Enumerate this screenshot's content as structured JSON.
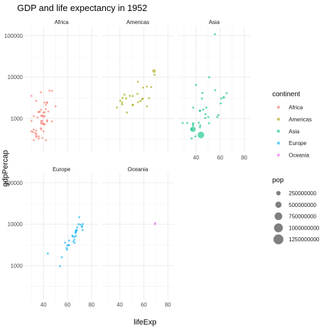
{
  "chart_data": {
    "type": "scatter",
    "title": "GDP and life expectancy in 1952",
    "xlabel": "lifeExp",
    "ylabel": "gdpPercap",
    "x_ticks": [
      "40",
      "60",
      "80"
    ],
    "y_ticks": [
      "1000",
      "10000",
      "100000"
    ],
    "y_scale": "log10",
    "xlim": [
      25,
      85
    ],
    "ylim": [
      150,
      170000
    ],
    "grid": true,
    "facets": [
      "Africa",
      "Americas",
      "Asia",
      "Europe",
      "Oceania"
    ],
    "colors": {
      "Africa": "#F8766D",
      "Americas": "#A3A500",
      "Asia": "#00BF7D",
      "Europe": "#00B0F6",
      "Oceania": "#E76BF3"
    },
    "color_legend": {
      "title": "continent",
      "items": [
        "Africa",
        "Americas",
        "Asia",
        "Europe",
        "Oceania"
      ],
      "position": "right"
    },
    "size_legend": {
      "title": "pop",
      "items": [
        "250000000",
        "500000000",
        "750000000",
        "1000000000",
        "1250000000"
      ],
      "values": [
        250000000,
        500000000,
        750000000,
        1000000000,
        1250000000
      ],
      "position": "right"
    },
    "series": [
      {
        "name": "Africa",
        "points": [
          [
            43,
            2450,
            9000000
          ],
          [
            30,
            3520,
            4200000
          ],
          [
            38,
            550,
            1700000
          ],
          [
            47,
            850,
            440000
          ],
          [
            32,
            540,
            4400000
          ],
          [
            39,
            340,
            2400000
          ],
          [
            38,
            1170,
            5000000
          ],
          [
            35,
            1070,
            1300000
          ],
          [
            39,
            1180,
            2700000
          ],
          [
            40,
            1100,
            150000
          ],
          [
            39,
            780,
            14000000
          ],
          [
            42,
            2130,
            850000
          ],
          [
            40,
            1390,
            2900000
          ],
          [
            34,
            2670,
            63000
          ],
          [
            41,
            1420,
            22000000
          ],
          [
            34,
            380,
            216000
          ],
          [
            36,
            330,
            1400000
          ],
          [
            34,
            360,
            20000000
          ],
          [
            38,
            4290,
            420000
          ],
          [
            30,
            490,
            280000
          ],
          [
            43,
            910,
            5600000
          ],
          [
            34,
            510,
            2700000
          ],
          [
            32,
            300,
            580000
          ],
          [
            43,
            850,
            6500000
          ],
          [
            42,
            300,
            750000
          ],
          [
            38,
            580,
            860000
          ],
          [
            43,
            2390,
            1000000
          ],
          [
            36,
            1440,
            4800000
          ],
          [
            36,
            370,
            2900000
          ],
          [
            34,
            420,
            3800000
          ],
          [
            33,
            450,
            4700000
          ],
          [
            40,
            740,
            1000000
          ],
          [
            50,
            1970,
            520000
          ],
          [
            42,
            1690,
            9900000
          ],
          [
            31,
            470,
            6400000
          ],
          [
            41,
            2420,
            490000
          ],
          [
            38,
            760,
            3400000
          ],
          [
            36,
            1440,
            33000000
          ],
          [
            47,
            4630,
            3900000
          ],
          [
            40,
            490,
            2500000
          ],
          [
            39,
            880,
            60000
          ],
          [
            37,
            1450,
            2700000
          ],
          [
            30,
            880,
            2100000
          ],
          [
            32,
            1140,
            2500000
          ],
          [
            45,
            4730,
            14000000
          ],
          [
            38,
            1620,
            8500000
          ],
          [
            41,
            1150,
            290000
          ],
          [
            41,
            720,
            8300000
          ],
          [
            38,
            860,
            1200000
          ],
          [
            44,
            1470,
            3600000
          ],
          [
            40,
            730,
            5800000
          ],
          [
            39,
            1150,
            2700000
          ]
        ]
      },
      {
        "name": "Americas",
        "points": [
          [
            62.5,
            5910,
            17900000
          ],
          [
            40.4,
            2680,
            2900000
          ],
          [
            50.9,
            2110,
            56600000
          ],
          [
            68.8,
            11370,
            14800000
          ],
          [
            54.7,
            3940,
            6400000
          ],
          [
            50.6,
            2140,
            12400000
          ],
          [
            57.2,
            2630,
            930000
          ],
          [
            59.4,
            5590,
            6000000
          ],
          [
            45.9,
            1400,
            2500000
          ],
          [
            48.4,
            3520,
            3500000
          ],
          [
            45.3,
            3050,
            2000000
          ],
          [
            42.0,
            2430,
            3100000
          ],
          [
            37.6,
            1840,
            3200000
          ],
          [
            41.9,
            2190,
            1500000
          ],
          [
            58.5,
            2900,
            1400000
          ],
          [
            50.8,
            3480,
            30100000
          ],
          [
            42.3,
            3110,
            1200000
          ],
          [
            55.2,
            2480,
            940000
          ],
          [
            62.6,
            1950,
            1600000
          ],
          [
            43.9,
            3760,
            8000000
          ],
          [
            64.3,
            3080,
            2200000
          ],
          [
            59.1,
            3030,
            660000
          ],
          [
            68.4,
            13990,
            157600000
          ],
          [
            66.1,
            5720,
            2400000
          ],
          [
            55.1,
            7690,
            5400000
          ]
        ]
      },
      {
        "name": "Asia",
        "points": [
          [
            28.8,
            780,
            8400000
          ],
          [
            50.9,
            9870,
            120000
          ],
          [
            37.5,
            680,
            46900000
          ],
          [
            39.4,
            370,
            4700000
          ],
          [
            44.0,
            400,
            556300000
          ],
          [
            60.96,
            3050,
            2100000
          ],
          [
            37.4,
            550,
            372000000
          ],
          [
            37.5,
            750,
            82100000
          ],
          [
            44.9,
            3040,
            17300000
          ],
          [
            45.3,
            4130,
            5400000
          ],
          [
            65.4,
            4090,
            1600000
          ],
          [
            63.0,
            3220,
            86500000
          ],
          [
            43.2,
            1550,
            610000
          ],
          [
            50.1,
            1090,
            8900000
          ],
          [
            47.5,
            1030,
            20900000
          ],
          [
            55.6,
            108400,
            160000
          ],
          [
            55.9,
            4830,
            1400000
          ],
          [
            48.5,
            1830,
            6700000
          ],
          [
            42.2,
            790,
            800000
          ],
          [
            36.3,
            330,
            20100000
          ],
          [
            36.2,
            550,
            9200000
          ],
          [
            37.6,
            1830,
            510000
          ],
          [
            43.4,
            680,
            41300000
          ],
          [
            47.8,
            1270,
            22400000
          ],
          [
            39.9,
            6460,
            4000000
          ],
          [
            60.4,
            2320,
            1100000
          ],
          [
            57.6,
            1080,
            7980000
          ],
          [
            45.9,
            1640,
            3700000
          ],
          [
            58.5,
            1210,
            8600000
          ],
          [
            50.8,
            770,
            21300000
          ],
          [
            43.2,
            610,
            26200000
          ],
          [
            43.2,
            1520,
            1000000
          ],
          [
            32.5,
            780,
            4960000
          ]
        ]
      },
      {
        "name": "Europe",
        "points": [
          [
            55.2,
            1600,
            1300000
          ],
          [
            66.8,
            6140,
            6900000
          ],
          [
            68.0,
            8340,
            8700000
          ],
          [
            53.8,
            970,
            2800000
          ],
          [
            59.6,
            2440,
            7300000
          ],
          [
            61.2,
            3120,
            3900000
          ],
          [
            66.9,
            6880,
            9100000
          ],
          [
            70.8,
            9690,
            4300000
          ],
          [
            66.6,
            6420,
            4100000
          ],
          [
            67.4,
            7030,
            42500000
          ],
          [
            67.5,
            7140,
            69100000
          ],
          [
            65.9,
            3530,
            7700000
          ],
          [
            64.0,
            5260,
            9500000
          ],
          [
            72.5,
            7270,
            150000
          ],
          [
            66.9,
            5210,
            2950000
          ],
          [
            65.9,
            4930,
            47700000
          ],
          [
            59.2,
            2650,
            410000
          ],
          [
            72.1,
            8940,
            10400000
          ],
          [
            72.7,
            10100,
            3300000
          ],
          [
            61.3,
            4030,
            25700000
          ],
          [
            59.8,
            3070,
            8500000
          ],
          [
            61.1,
            3140,
            16600000
          ],
          [
            57.9,
            3580,
            6900000
          ],
          [
            64.4,
            5070,
            3600000
          ],
          [
            65.6,
            4220,
            1500000
          ],
          [
            64.9,
            3830,
            28500000
          ],
          [
            71.9,
            8530,
            7100000
          ],
          [
            69.6,
            14730,
            4800000
          ],
          [
            43.6,
            1970,
            22200000
          ],
          [
            69.2,
            9980,
            50400000
          ]
        ]
      },
      {
        "name": "Oceania",
        "points": [
          [
            69.1,
            10040,
            8700000
          ],
          [
            69.4,
            10560,
            1990000
          ]
        ]
      }
    ]
  }
}
